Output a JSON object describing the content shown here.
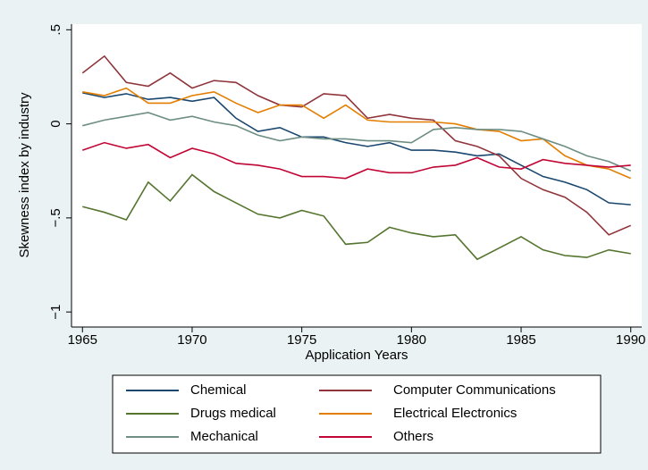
{
  "chart_data": {
    "type": "line",
    "x_label": "Application Years",
    "y_label": "Skewness index by industry",
    "x": [
      1965,
      1966,
      1967,
      1968,
      1969,
      1970,
      1971,
      1972,
      1973,
      1974,
      1975,
      1976,
      1977,
      1978,
      1979,
      1980,
      1981,
      1982,
      1983,
      1984,
      1985,
      1986,
      1987,
      1988,
      1989,
      1990
    ],
    "xlim": [
      1964.5,
      1990.5
    ],
    "xticks": [
      1965,
      1970,
      1975,
      1980,
      1985,
      1990
    ],
    "ylim": [
      -1.08,
      0.53
    ],
    "yticks": [
      {
        "value": -1,
        "label": "−1"
      },
      {
        "value": -0.5,
        "label": "−.5"
      },
      0,
      {
        "value": 0.5,
        "label": ".5"
      }
    ],
    "grid": false,
    "series": [
      {
        "name": "Chemical",
        "color": "#1a476f",
        "values": [
          0.165,
          0.14,
          0.16,
          0.13,
          0.14,
          0.12,
          0.14,
          0.03,
          -0.04,
          -0.02,
          -0.07,
          -0.07,
          -0.1,
          -0.12,
          -0.1,
          -0.14,
          -0.14,
          -0.15,
          -0.17,
          -0.16,
          -0.22,
          -0.28,
          -0.31,
          -0.35,
          -0.42,
          -0.43
        ]
      },
      {
        "name": "Computer Communications",
        "color": "#90353b",
        "values": [
          0.27,
          0.36,
          0.22,
          0.2,
          0.27,
          0.19,
          0.23,
          0.22,
          0.15,
          0.1,
          0.09,
          0.16,
          0.15,
          0.03,
          0.05,
          0.03,
          0.02,
          -0.09,
          -0.12,
          -0.17,
          -0.29,
          -0.35,
          -0.39,
          -0.47,
          -0.59,
          -0.54
        ]
      },
      {
        "name": "Drugs medical",
        "color": "#55752f",
        "values": [
          -0.44,
          -0.47,
          -0.51,
          -0.31,
          -0.41,
          -0.27,
          -0.36,
          -0.42,
          -0.48,
          -0.5,
          -0.46,
          -0.49,
          -0.64,
          -0.63,
          -0.55,
          -0.58,
          -0.6,
          -0.59,
          -0.72,
          -0.66,
          -0.6,
          -0.67,
          -0.7,
          -0.71,
          -0.67,
          -0.69
        ]
      },
      {
        "name": "Electrical Electronics",
        "color": "#e37e00",
        "values": [
          0.17,
          0.15,
          0.19,
          0.11,
          0.11,
          0.15,
          0.17,
          0.11,
          0.06,
          0.1,
          0.1,
          0.03,
          0.1,
          0.02,
          0.01,
          0.01,
          0.01,
          0.0,
          -0.03,
          -0.04,
          -0.09,
          -0.08,
          -0.17,
          -0.22,
          -0.24,
          -0.29
        ]
      },
      {
        "name": "Mechanical",
        "color": "#6e8e84",
        "values": [
          -0.01,
          0.02,
          0.04,
          0.06,
          0.02,
          0.04,
          0.01,
          -0.01,
          -0.06,
          -0.09,
          -0.07,
          -0.08,
          -0.08,
          -0.09,
          -0.09,
          -0.1,
          -0.03,
          -0.02,
          -0.03,
          -0.03,
          -0.04,
          -0.08,
          -0.12,
          -0.17,
          -0.2,
          -0.25
        ]
      },
      {
        "name": "Others",
        "color": "#c10534",
        "values": [
          -0.14,
          -0.1,
          -0.13,
          -0.11,
          -0.18,
          -0.13,
          -0.16,
          -0.21,
          -0.22,
          -0.24,
          -0.28,
          -0.28,
          -0.29,
          -0.24,
          -0.26,
          -0.26,
          -0.23,
          -0.22,
          -0.18,
          -0.23,
          -0.24,
          -0.19,
          -0.21,
          -0.22,
          -0.23,
          -0.22
        ]
      }
    ]
  }
}
